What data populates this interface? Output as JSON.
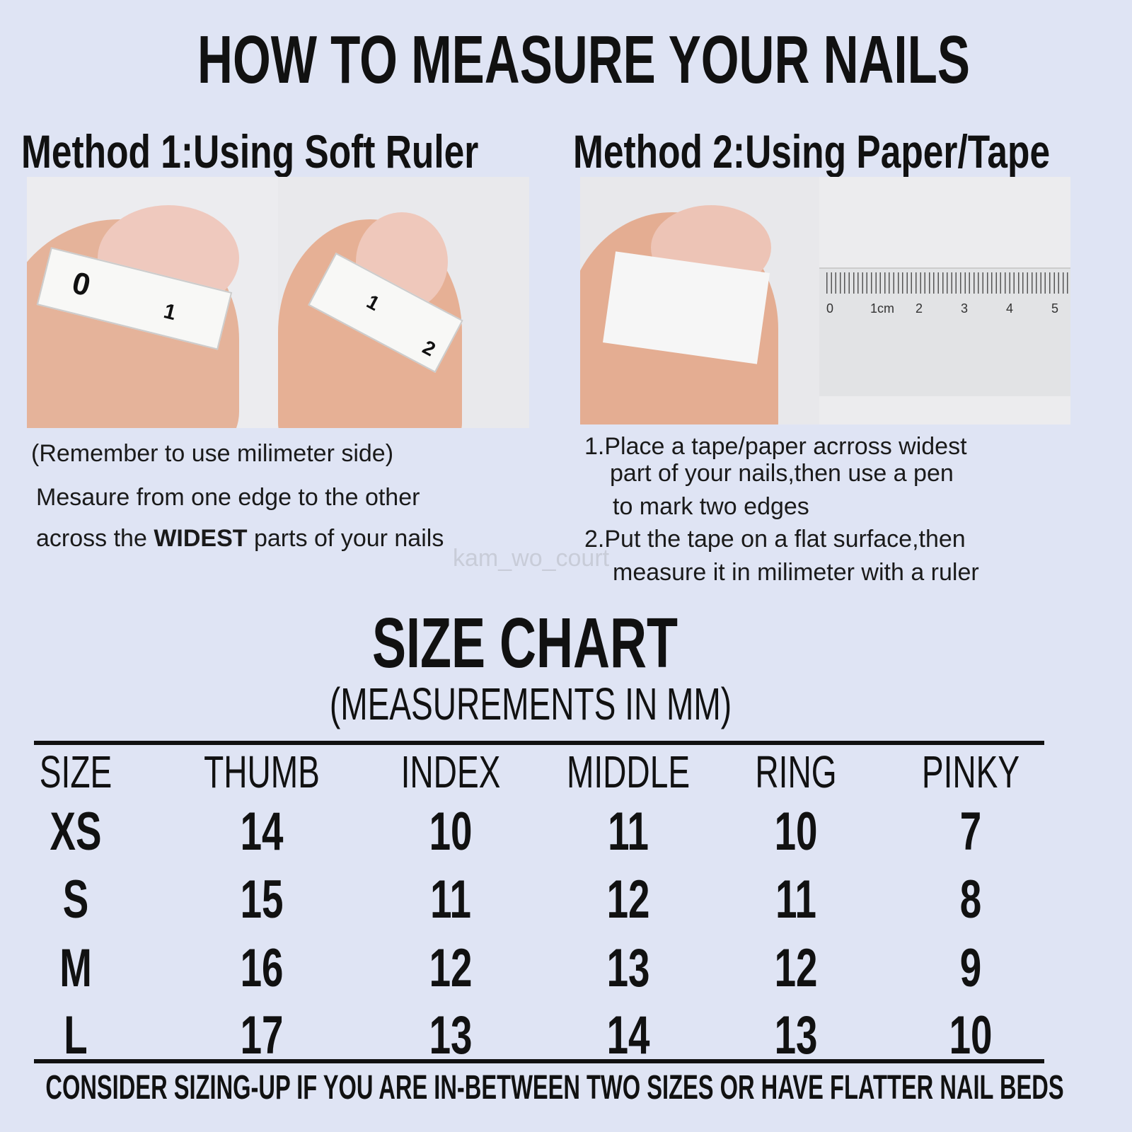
{
  "title": "HOW TO MEASURE YOUR NAILS",
  "method1": {
    "heading": "Method 1:Using Soft Ruler",
    "note": "(Remember to use milimeter side)",
    "line1": "Mesaure from one edge to the other",
    "line2_pre": "across the ",
    "line2_bold": "WIDEST",
    "line2_post": " parts of your nails",
    "ruler_marks": [
      "0",
      "1",
      "1",
      "2"
    ]
  },
  "method2": {
    "heading": "Method 2:Using Paper/Tape",
    "step1_l1": "1.Place a tape/paper acrross widest",
    "step1_l2": "part of your nails,then use a pen",
    "step1_l3": "to mark two edges",
    "step2_l1": "2.Put the tape on a flat surface,then",
    "step2_l2": "measure it in milimeter with a ruler",
    "ruler_labels": [
      "0",
      "1cm",
      "2",
      "3",
      "4",
      "5"
    ]
  },
  "watermark": "kam_wo_court",
  "size_chart": {
    "title": "SIZE CHART",
    "subtitle": "(MEASUREMENTS IN MM)",
    "headers": [
      "SIZE",
      "THUMB",
      "INDEX",
      "MIDDLE",
      "RING",
      "PINKY"
    ],
    "rows": [
      [
        "XS",
        "14",
        "10",
        "11",
        "10",
        "7"
      ],
      [
        "S",
        "15",
        "11",
        "12",
        "11",
        "8"
      ],
      [
        "M",
        "16",
        "12",
        "13",
        "12",
        "9"
      ],
      [
        "L",
        "17",
        "13",
        "14",
        "13",
        "10"
      ]
    ],
    "footer": "CONSIDER SIZING-UP IF YOU ARE IN-BETWEEN TWO SIZES OR HAVE FLATTER NAIL BEDS"
  },
  "colors": {
    "background": "#dfe4f4",
    "text": "#111111",
    "skin": "#e8b49a",
    "photo_bg": "#e9e9ec"
  }
}
